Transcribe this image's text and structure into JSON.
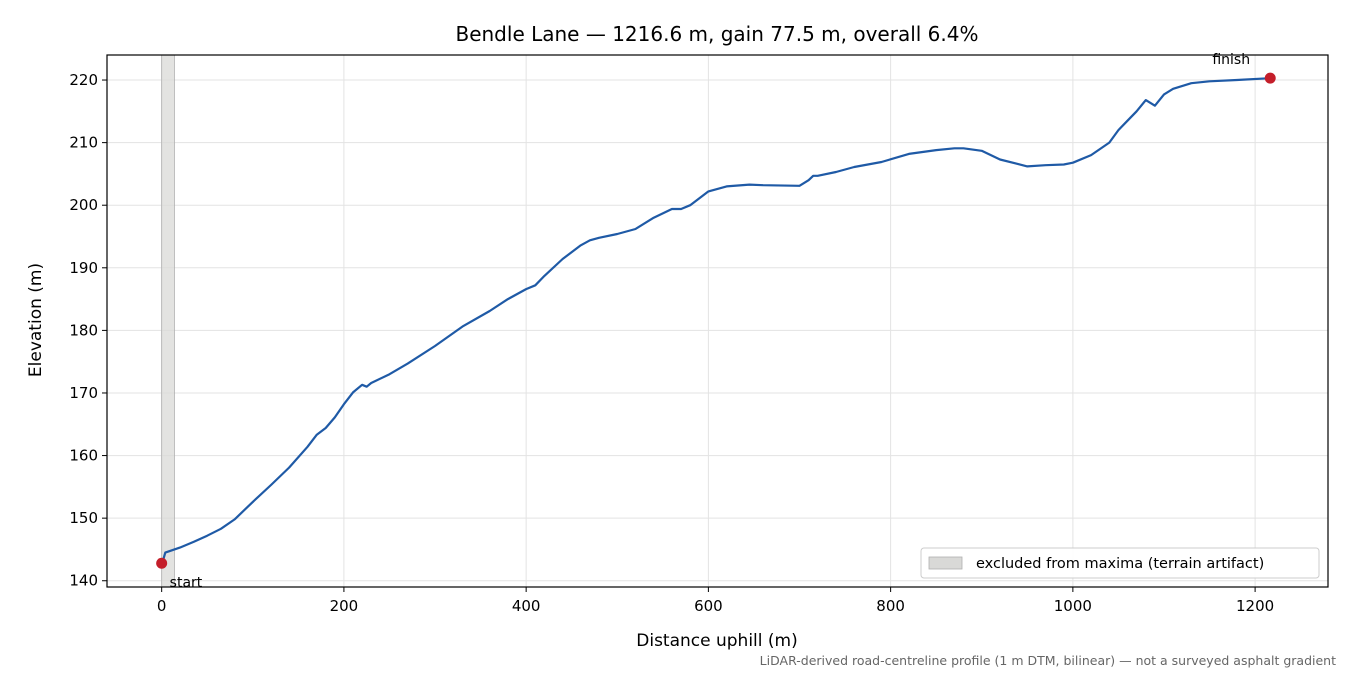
{
  "chart_data": {
    "type": "line",
    "title": "Bendle Lane — 1216.6 m, gain 77.5 m, overall 6.4%",
    "xlabel": "Distance uphill (m)",
    "ylabel": "Elevation (m)",
    "xlim": [
      -60,
      1280
    ],
    "ylim": [
      139,
      224
    ],
    "xticks": [
      0,
      200,
      400,
      600,
      800,
      1000,
      1200
    ],
    "yticks": [
      140,
      150,
      160,
      170,
      180,
      190,
      200,
      210,
      220
    ],
    "grid": true,
    "line_color": "#1f5aa6",
    "marker_color": "#c41e2a",
    "band_color": "#d9d9d7",
    "excluded_band": {
      "x0": 0,
      "x1": 14,
      "label": "excluded from maxima (terrain artifact)"
    },
    "legend_position": "lower-right",
    "start_marker": {
      "x": 0,
      "y": 142.8,
      "label": "start"
    },
    "finish_marker": {
      "x": 1216.6,
      "y": 220.3,
      "label": "finish"
    },
    "footnote": "LiDAR-derived road-centreline profile (1 m DTM, bilinear) — not a surveyed asphalt gradient",
    "x": [
      0,
      2,
      4,
      10,
      20,
      35,
      50,
      65,
      80,
      100,
      120,
      140,
      160,
      170,
      180,
      190,
      200,
      210,
      220,
      225,
      230,
      250,
      270,
      300,
      330,
      360,
      380,
      400,
      410,
      420,
      440,
      460,
      470,
      480,
      500,
      520,
      540,
      560,
      570,
      580,
      600,
      620,
      645,
      660,
      700,
      710,
      715,
      720,
      740,
      760,
      790,
      820,
      850,
      870,
      880,
      900,
      920,
      950,
      970,
      990,
      1000,
      1020,
      1040,
      1050,
      1060,
      1070,
      1080,
      1090,
      1100,
      1110,
      1130,
      1150,
      1180,
      1216.6
    ],
    "y": [
      142.8,
      143.5,
      144.5,
      144.8,
      145.3,
      146.2,
      147.2,
      148.3,
      149.8,
      152.6,
      155.3,
      158.1,
      161.4,
      163.3,
      164.4,
      166.1,
      168.2,
      170.1,
      171.3,
      171.0,
      171.6,
      173.0,
      174.7,
      177.5,
      180.6,
      183.1,
      185.0,
      186.6,
      187.2,
      188.7,
      191.4,
      193.6,
      194.4,
      194.8,
      195.4,
      196.2,
      198.0,
      199.4,
      199.4,
      200.0,
      202.2,
      203.0,
      203.3,
      203.2,
      203.1,
      204.0,
      204.7,
      204.7,
      205.3,
      206.1,
      206.9,
      208.2,
      208.8,
      209.1,
      209.1,
      208.7,
      207.3,
      206.2,
      206.4,
      206.5,
      206.8,
      208.0,
      210.0,
      212.0,
      213.5,
      215.0,
      216.8,
      215.9,
      217.7,
      218.6,
      219.5,
      219.8,
      220.0,
      220.3
    ]
  }
}
